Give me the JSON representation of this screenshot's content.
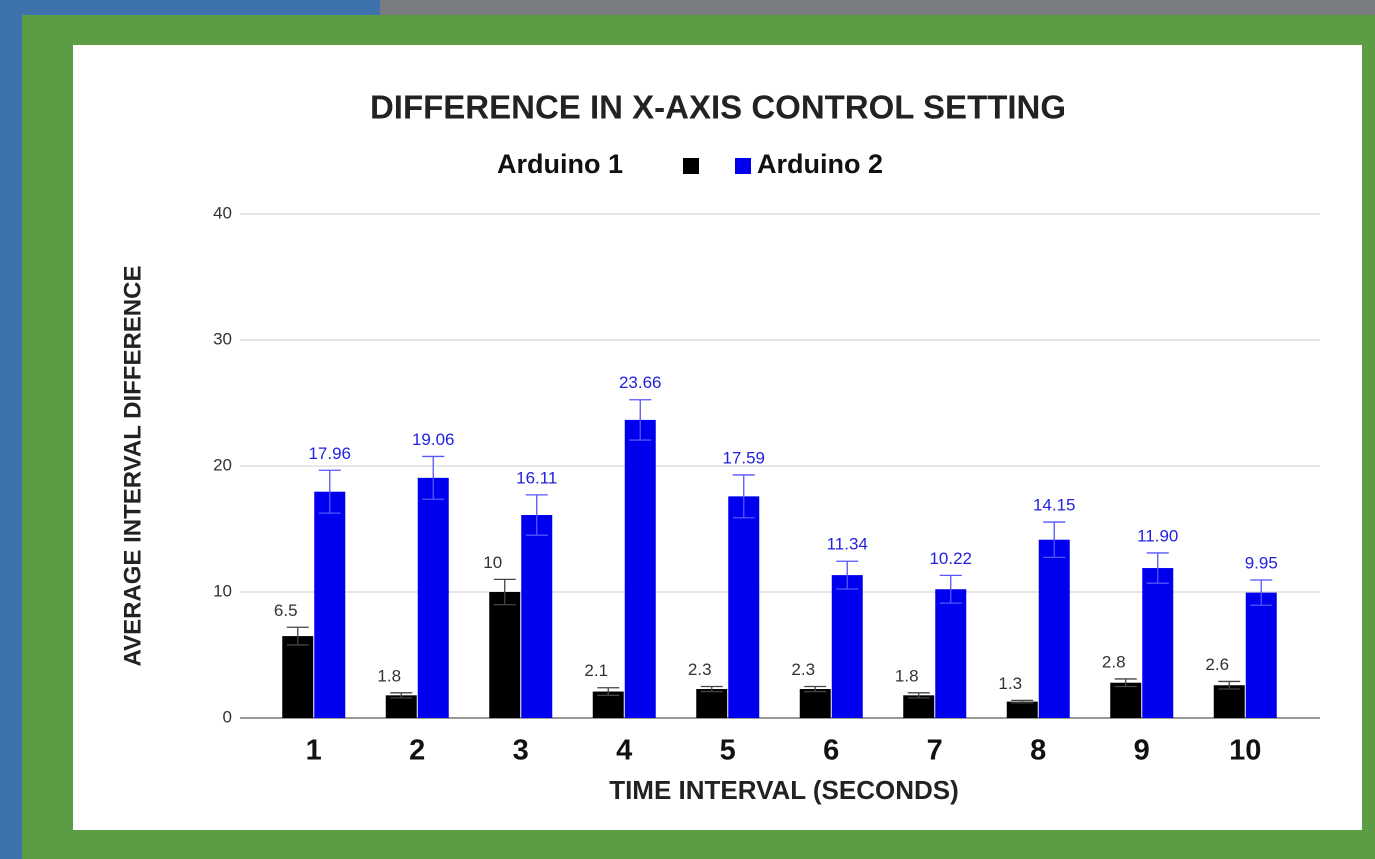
{
  "chart_data": {
    "type": "bar",
    "title": "DIFFERENCE IN X-AXIS CONTROL SETTING",
    "x_label": "TIME INTERVAL (SECONDS)",
    "y_label": "AVERAGE INTERVAL DIFFERENCE",
    "categories": [
      "1",
      "2",
      "3",
      "4",
      "5",
      "6",
      "7",
      "8",
      "9",
      "10"
    ],
    "series": [
      {
        "name": "Arduino 1",
        "color": "#000000",
        "values": [
          6.5,
          1.8,
          10,
          2.1,
          2.3,
          2.3,
          1.8,
          1.3,
          2.8,
          2.6
        ],
        "errors": [
          0.7,
          0.2,
          1.0,
          0.3,
          0.2,
          0.2,
          0.2,
          0.1,
          0.3,
          0.3
        ]
      },
      {
        "name": "Arduino 2",
        "color": "#0000ee",
        "values": [
          17.96,
          19.06,
          16.11,
          23.66,
          17.59,
          11.34,
          10.22,
          14.15,
          11.9,
          9.95
        ],
        "value_labels": [
          "17.96",
          "19.06",
          "16.11",
          "23.66",
          "17.59",
          "11.34",
          "10.22",
          "14.15",
          "11.90",
          "9.95"
        ],
        "errors": [
          1.7,
          1.7,
          1.6,
          1.6,
          1.7,
          1.1,
          1.1,
          1.4,
          1.2,
          1.0
        ]
      }
    ],
    "ylim": [
      0,
      40
    ],
    "yticks": [
      0,
      10,
      20,
      30,
      40
    ],
    "grid": true
  }
}
